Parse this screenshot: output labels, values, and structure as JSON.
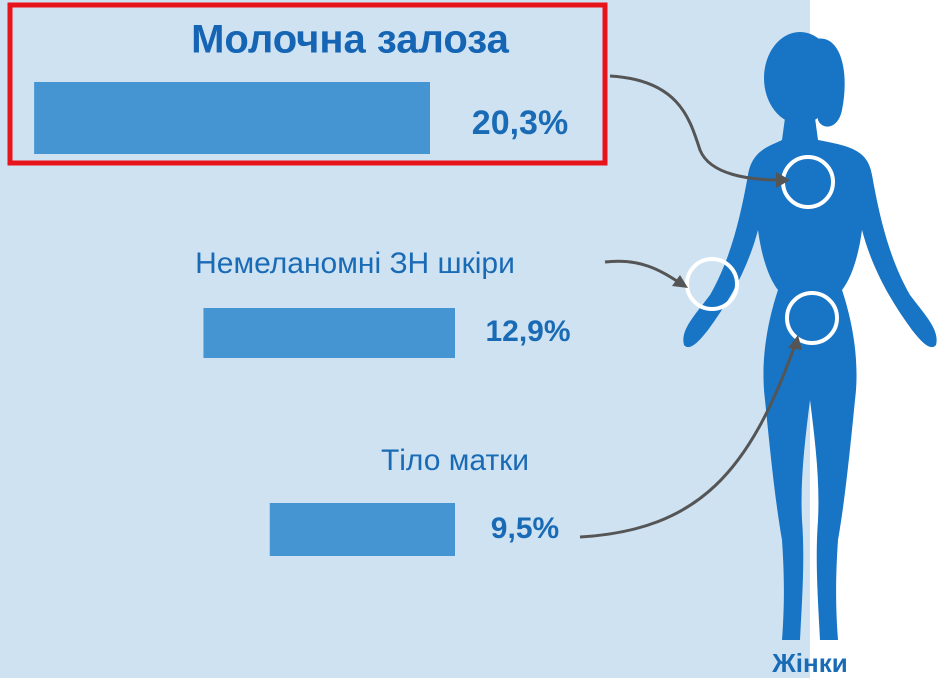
{
  "chart_data": {
    "type": "hbar",
    "categories": [
      "Молочна залоза",
      "Немеланомні ЗН шкіри",
      "Тіло матки"
    ],
    "values": [
      20.3,
      12.9,
      9.5
    ],
    "value_labels": [
      "20,3%",
      "12,9%",
      "9,5%"
    ],
    "color": "#4595d2",
    "annotation": "Жінки"
  }
}
